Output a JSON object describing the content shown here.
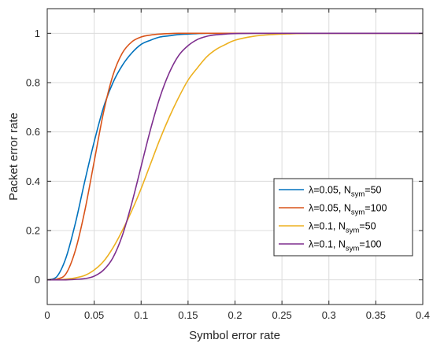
{
  "chart_data": {
    "type": "line",
    "xlabel": "Symbol error rate",
    "ylabel": "Packet error rate",
    "xlim": [
      0,
      0.4
    ],
    "ylim": [
      -0.1,
      1.1
    ],
    "xticks": [
      0,
      0.05,
      0.1,
      0.15,
      0.2,
      0.25,
      0.3,
      0.35,
      0.4
    ],
    "xtick_labels": [
      "0",
      "0.05",
      "0.1",
      "0.15",
      "0.2",
      "0.25",
      "0.3",
      "0.35",
      "0.4"
    ],
    "yticks": [
      0,
      0.2,
      0.4,
      0.6,
      0.8,
      1
    ],
    "ytick_labels": [
      "0",
      "0.2",
      "0.4",
      "0.6",
      "0.8",
      "1"
    ],
    "grid": true,
    "legend_position": "right",
    "x": [
      0,
      0.01,
      0.02,
      0.03,
      0.04,
      0.05,
      0.06,
      0.07,
      0.08,
      0.09,
      0.1,
      0.11,
      0.12,
      0.13,
      0.14,
      0.15,
      0.16,
      0.17,
      0.18,
      0.19,
      0.2,
      0.22,
      0.24,
      0.26,
      0.28,
      0.3,
      0.35,
      0.4
    ],
    "series": [
      {
        "legend": {
          "prefix": "λ=0.05, N",
          "sub": "sym",
          "suffix": "=50"
        },
        "color": "#0072BD",
        "values": [
          0,
          0.012,
          0.09,
          0.23,
          0.4,
          0.56,
          0.7,
          0.8,
          0.87,
          0.92,
          0.955,
          0.972,
          0.985,
          0.99,
          0.995,
          0.997,
          0.999,
          1,
          1,
          1,
          1,
          1,
          1,
          1,
          1,
          1,
          1,
          1
        ]
      },
      {
        "legend": {
          "prefix": "λ=0.05, N",
          "sub": "sym",
          "suffix": "=100"
        },
        "color": "#D95319",
        "values": [
          0,
          0.003,
          0.025,
          0.12,
          0.28,
          0.48,
          0.68,
          0.83,
          0.92,
          0.965,
          0.985,
          0.993,
          0.997,
          0.999,
          1,
          1,
          1,
          1,
          1,
          1,
          1,
          1,
          1,
          1,
          1,
          1,
          1,
          1
        ]
      },
      {
        "legend": {
          "prefix": "λ=0.1, N",
          "sub": "sym",
          "suffix": "=50"
        },
        "color": "#EDB120",
        "values": [
          0,
          0,
          0.003,
          0.008,
          0.018,
          0.04,
          0.075,
          0.13,
          0.2,
          0.28,
          0.37,
          0.47,
          0.57,
          0.66,
          0.74,
          0.81,
          0.86,
          0.905,
          0.935,
          0.955,
          0.972,
          0.988,
          0.995,
          0.998,
          1,
          1,
          1,
          1
        ]
      },
      {
        "legend": {
          "prefix": "λ=0.1, N",
          "sub": "sym",
          "suffix": "=100"
        },
        "color": "#7E2F8E",
        "values": [
          0,
          0,
          0,
          0.002,
          0.005,
          0.015,
          0.04,
          0.09,
          0.18,
          0.31,
          0.46,
          0.61,
          0.74,
          0.84,
          0.91,
          0.95,
          0.975,
          0.988,
          0.994,
          0.997,
          0.999,
          1,
          1,
          1,
          1,
          1,
          1,
          1
        ]
      }
    ]
  }
}
